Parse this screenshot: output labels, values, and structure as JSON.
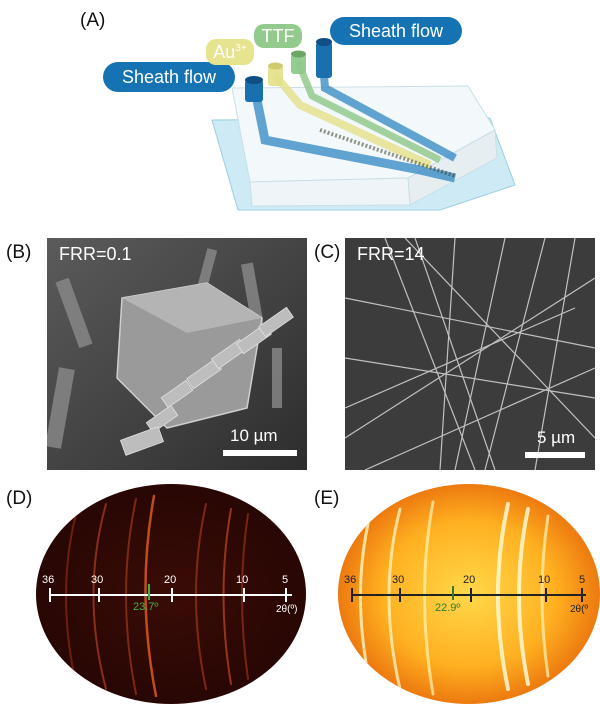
{
  "panels": {
    "a": {
      "label": "(A)",
      "sheath_left": "Sheath flow",
      "sheath_right": "Sheath flow",
      "au": "Au",
      "au_sup": "3+",
      "ttf": "TTF"
    },
    "b": {
      "label": "(B)",
      "ratio": "FRR=0.1",
      "scale": "10 µm"
    },
    "c": {
      "label": "(C)",
      "ratio": "FRR=14",
      "scale": "5 µm"
    },
    "d": {
      "label": "(D)",
      "ticks": [
        "36",
        "30",
        "20",
        "10",
        "5"
      ],
      "axis_unit": "2θ(º)",
      "peak": "23.7º"
    },
    "e": {
      "label": "(E)",
      "ticks": [
        "36",
        "30",
        "20",
        "10",
        "5"
      ],
      "axis_unit": "2θ(º",
      "peak": "22.9º"
    }
  },
  "colors": {
    "sheath": "#1673b3",
    "au": "#e3e08a",
    "ttf": "#8fc98a",
    "chip": "#bfe3f0"
  }
}
